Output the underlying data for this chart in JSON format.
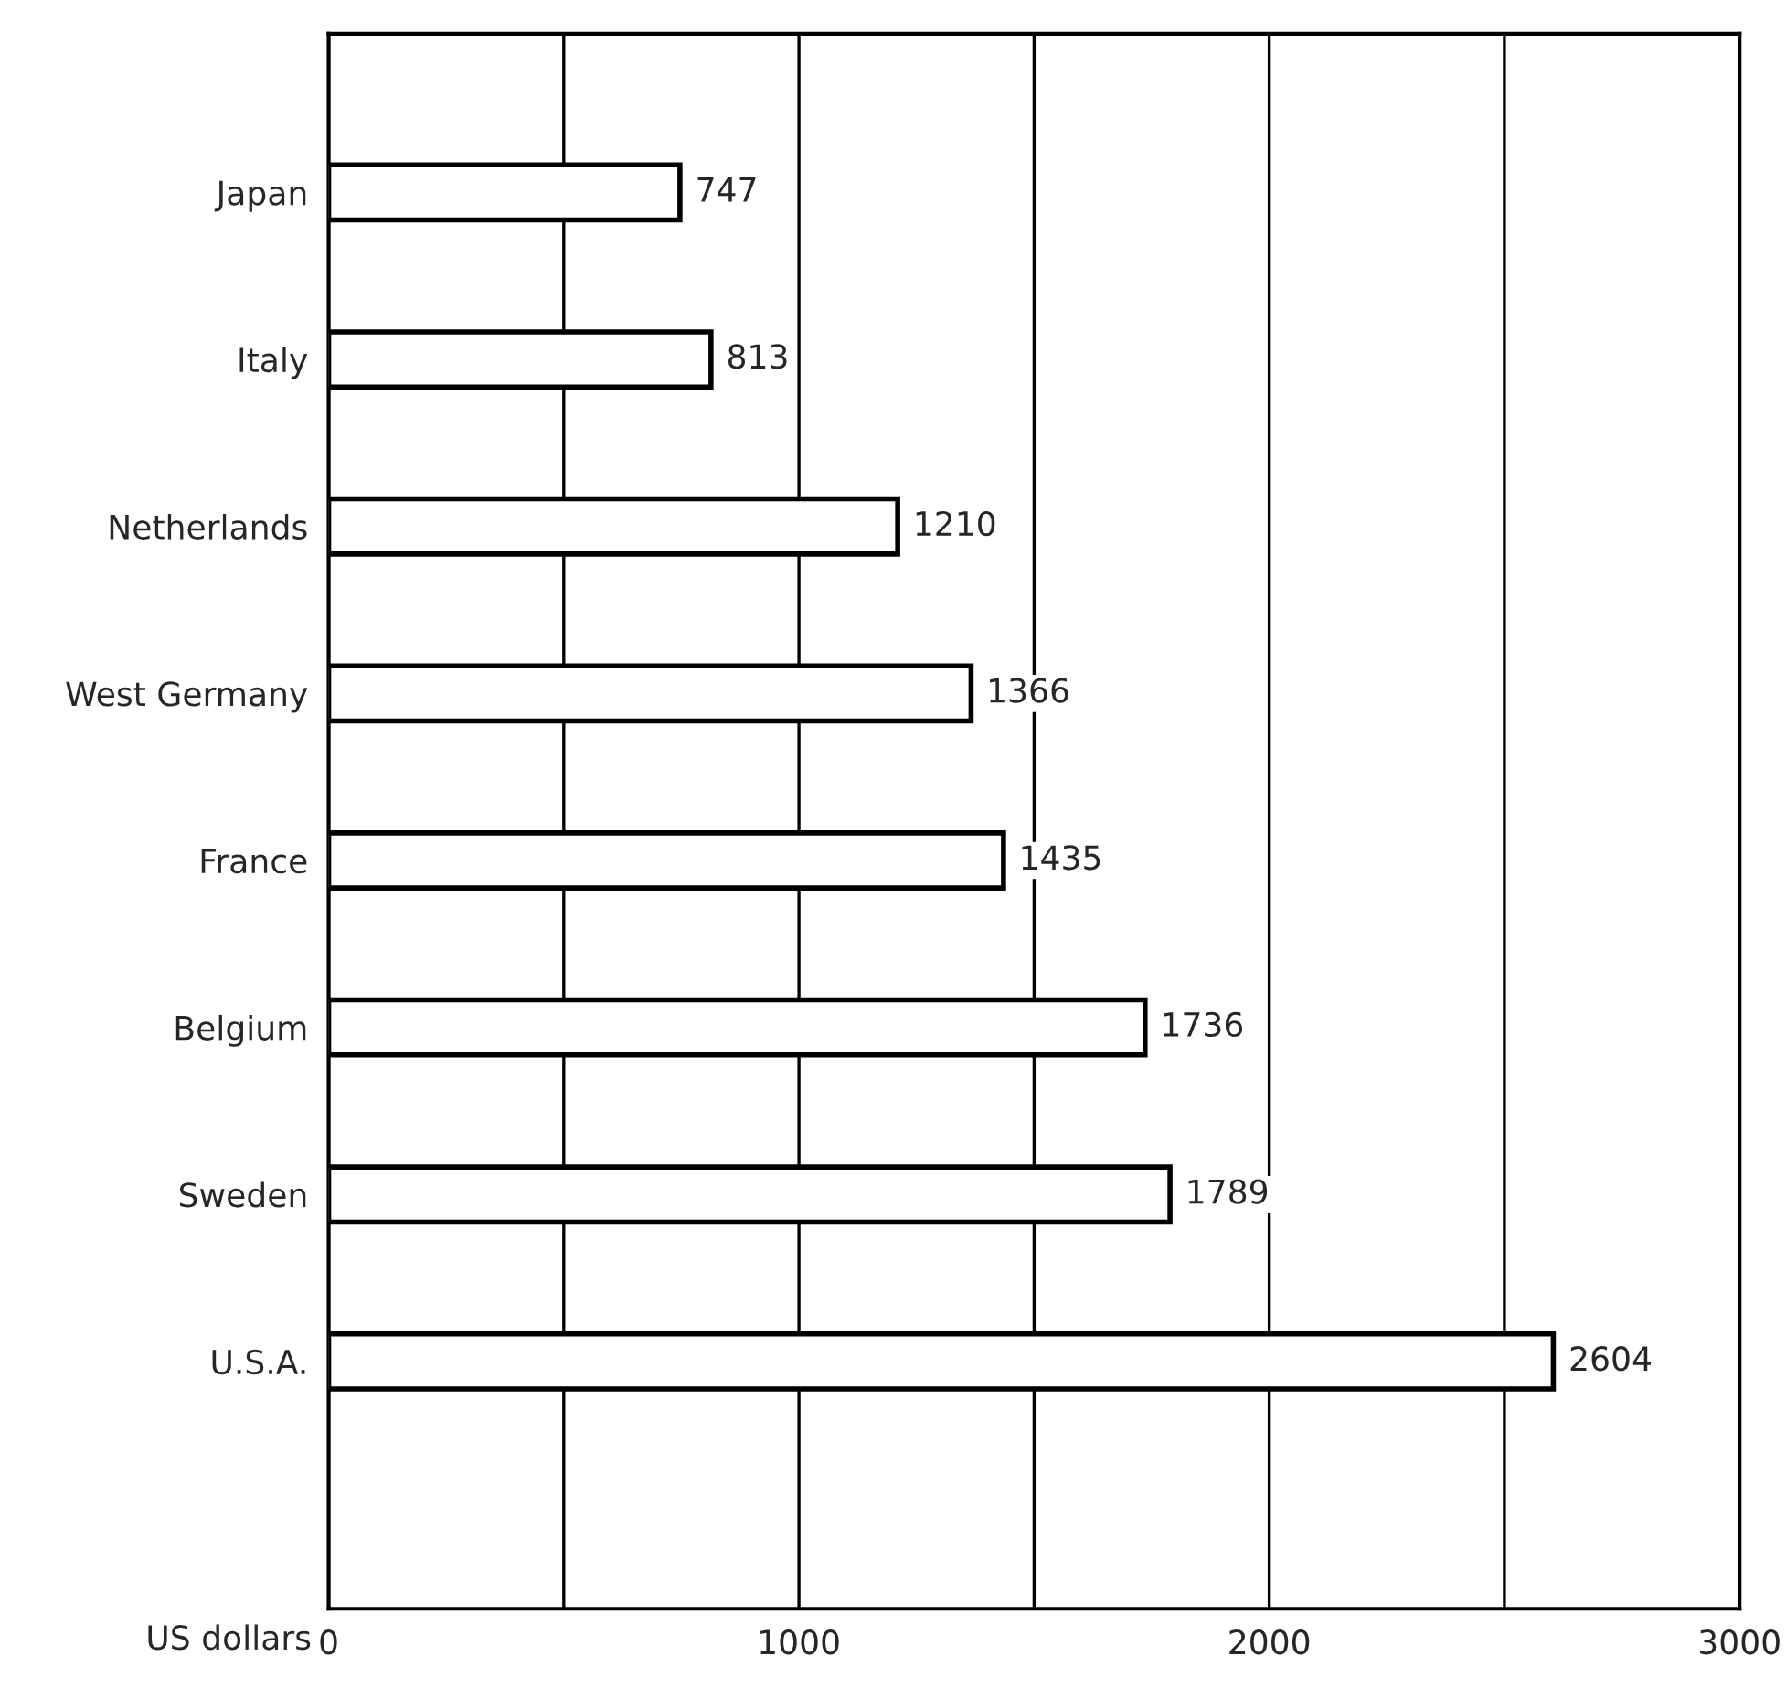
{
  "chart_data": {
    "type": "bar",
    "orientation": "horizontal",
    "categories": [
      "Japan",
      "Italy",
      "Netherlands",
      "West Germany",
      "France",
      "Belgium",
      "Sweden",
      "U.S.A."
    ],
    "values": [
      747,
      813,
      1210,
      1366,
      1435,
      1736,
      1789,
      2604
    ],
    "color": "#ffffff",
    "xlabel": "US dollars",
    "xlim": [
      0,
      3000
    ],
    "xticks": [
      0,
      {
        "value": 500,
        "label": null
      },
      1000,
      {
        "value": 1500,
        "label": null
      },
      2000,
      {
        "value": 2500,
        "label": null
      },
      3000
    ],
    "grid": "x",
    "data_labels": true
  }
}
